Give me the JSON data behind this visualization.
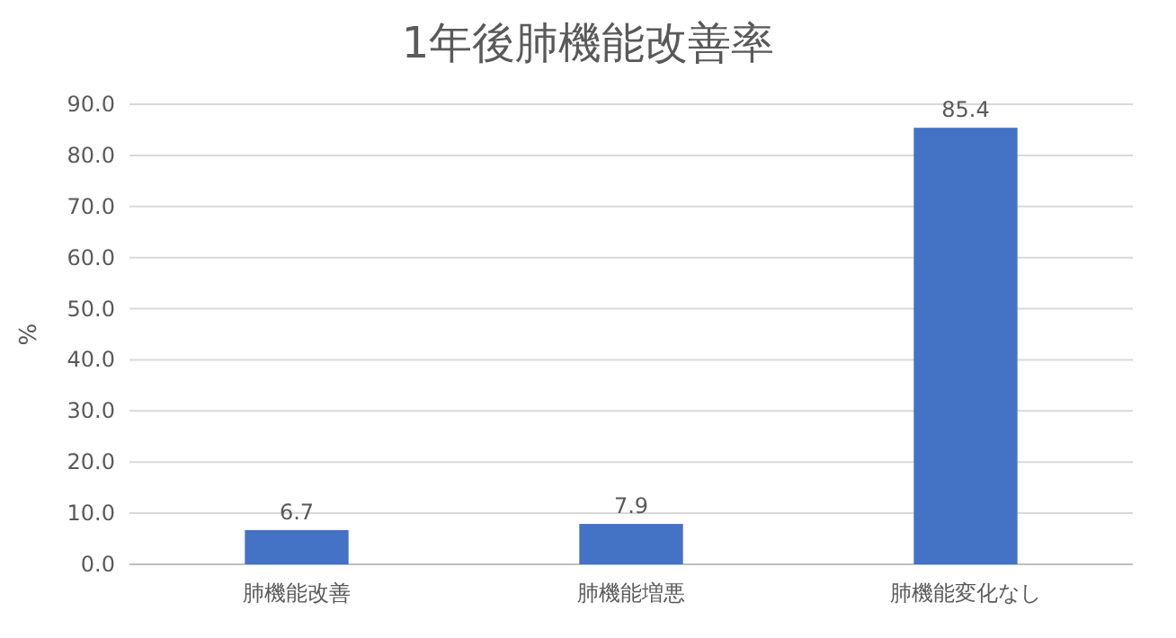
{
  "chart_data": {
    "type": "bar",
    "title": "1年後肺機能改善率",
    "ylabel": "%",
    "categories": [
      "肺機能改善",
      "肺機能増悪",
      "肺機能変化なし"
    ],
    "values": [
      6.7,
      7.9,
      85.4
    ],
    "color": "#4472c4",
    "ylim": [
      0,
      90
    ],
    "yticks": [
      {
        "value": 0,
        "label": "0.0"
      },
      {
        "value": 10,
        "label": "10.0"
      },
      {
        "value": 20,
        "label": "20.0"
      },
      {
        "value": 30,
        "label": "30.0"
      },
      {
        "value": 40,
        "label": "40.0"
      },
      {
        "value": 50,
        "label": "50.0"
      },
      {
        "value": 60,
        "label": "60.0"
      },
      {
        "value": 70,
        "label": "70.0"
      },
      {
        "value": 80,
        "label": "80.0"
      },
      {
        "value": 90,
        "label": "90.0"
      }
    ],
    "grid": "y",
    "data_labels": true
  }
}
